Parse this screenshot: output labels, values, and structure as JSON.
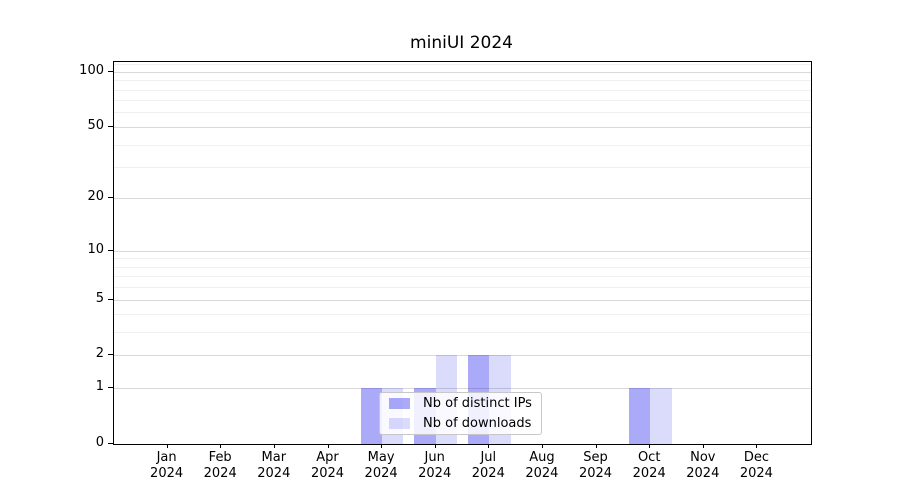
{
  "chart_data": {
    "type": "bar",
    "title": "miniUI 2024",
    "categories": [
      "Jan",
      "Feb",
      "Mar",
      "Apr",
      "May",
      "Jun",
      "Jul",
      "Aug",
      "Sep",
      "Oct",
      "Nov",
      "Dec"
    ],
    "year": "2024",
    "series": [
      {
        "name": "Nb of distinct IPs",
        "values": [
          0,
          0,
          0,
          0,
          1,
          1,
          2,
          0,
          0,
          1,
          0,
          0
        ],
        "color": "rgba(12,12,235,0.35)"
      },
      {
        "name": "Nb of downloads",
        "values": [
          0,
          0,
          0,
          0,
          1,
          2,
          2,
          0,
          0,
          1,
          0,
          0
        ],
        "color": "rgba(12,12,235,0.15)"
      }
    ],
    "yscale": "log1p",
    "ylim": [
      0,
      113
    ],
    "xlim": [
      -1,
      12
    ],
    "bar_width": 0.4,
    "yticks_major": [
      0,
      1,
      2,
      5,
      10,
      20,
      50,
      100
    ],
    "yticks_minor": [
      3,
      4,
      6,
      7,
      8,
      9,
      30,
      40,
      60,
      70,
      80,
      90,
      110
    ],
    "grid": true,
    "legend_position": "lower center",
    "colors": {
      "major_grid": "#d9d9d9",
      "minor_grid": "#f0f0f0",
      "spine": "#000000",
      "text": "#000000",
      "background": "#ffffff"
    }
  }
}
